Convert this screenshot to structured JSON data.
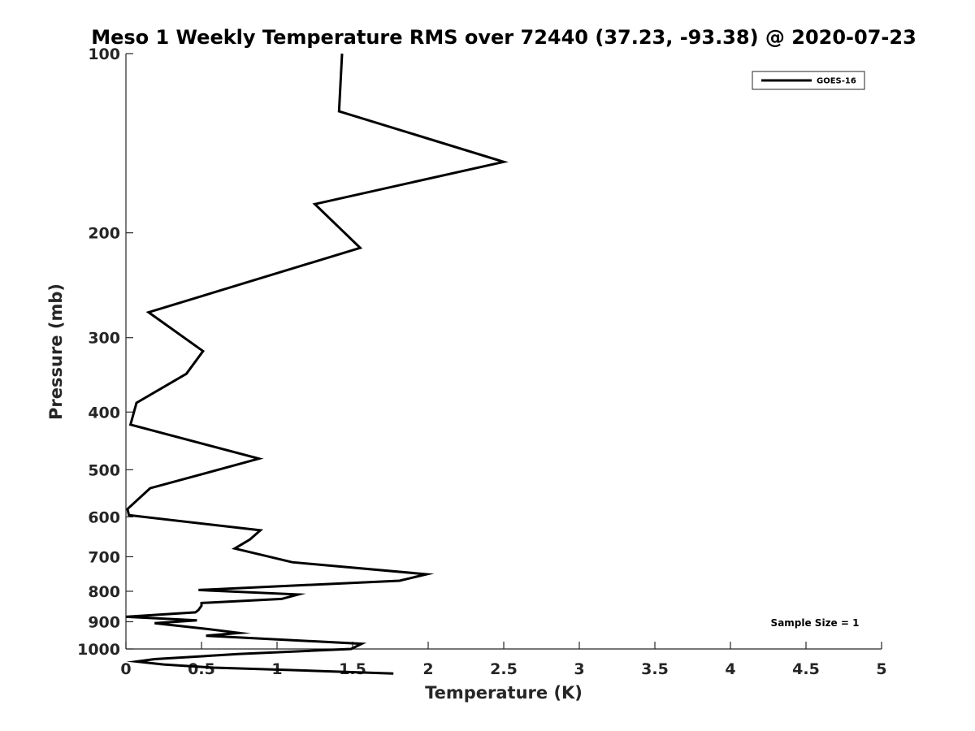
{
  "chart_data": {
    "type": "line",
    "title": "Meso 1 Weekly Temperature RMS over 72440 (37.23, -93.38) @ 2020-07-23",
    "xlabel": "Temperature (K)",
    "ylabel": "Pressure (mb)",
    "xlim": [
      0,
      5
    ],
    "ylim": [
      100,
      1000
    ],
    "y_scale": "log",
    "y_direction": "reversed",
    "x_ticks": [
      "0",
      "0.5",
      "1",
      "1.5",
      "2",
      "2.5",
      "3",
      "3.5",
      "4",
      "4.5",
      "5"
    ],
    "y_ticks": [
      "100",
      "200",
      "300",
      "400",
      "500",
      "600",
      "700",
      "800",
      "900",
      "1000"
    ],
    "grid": false,
    "legend": {
      "position": "top-right",
      "entries": [
        "GOES-16"
      ]
    },
    "annotation": "Sample Size = 1",
    "series": [
      {
        "name": "GOES-16",
        "color": "#000000",
        "points": [
          [
            1.43,
            100
          ],
          [
            1.41,
            125
          ],
          [
            2.5,
            152
          ],
          [
            1.25,
            179
          ],
          [
            1.55,
            212
          ],
          [
            0.15,
            272
          ],
          [
            0.51,
            316
          ],
          [
            0.4,
            345
          ],
          [
            0.07,
            386
          ],
          [
            0.03,
            420
          ],
          [
            0.88,
            479
          ],
          [
            0.16,
            537
          ],
          [
            0.01,
            582
          ],
          [
            0.02,
            596
          ],
          [
            0.89,
            632
          ],
          [
            0.82,
            655
          ],
          [
            0.72,
            678
          ],
          [
            1.1,
            715
          ],
          [
            1.99,
            749
          ],
          [
            1.81,
            768
          ],
          [
            0.48,
            796
          ],
          [
            1.14,
            810
          ],
          [
            1.03,
            824
          ],
          [
            0.5,
            837
          ],
          [
            0.5,
            846
          ],
          [
            0.48,
            860
          ],
          [
            0.46,
            868
          ],
          [
            0.0,
            883
          ],
          [
            0.47,
            895
          ],
          [
            0.19,
            905
          ],
          [
            0.53,
            925
          ],
          [
            0.75,
            940
          ],
          [
            0.53,
            950
          ],
          [
            1.56,
            980
          ],
          [
            1.49,
            1000
          ],
          [
            0.74,
            1020
          ],
          [
            0.19,
            1040
          ],
          [
            0.07,
            1050
          ],
          [
            0.25,
            1062
          ],
          [
            0.58,
            1075
          ],
          [
            1.1,
            1085
          ],
          [
            1.77,
            1100
          ]
        ]
      }
    ]
  }
}
